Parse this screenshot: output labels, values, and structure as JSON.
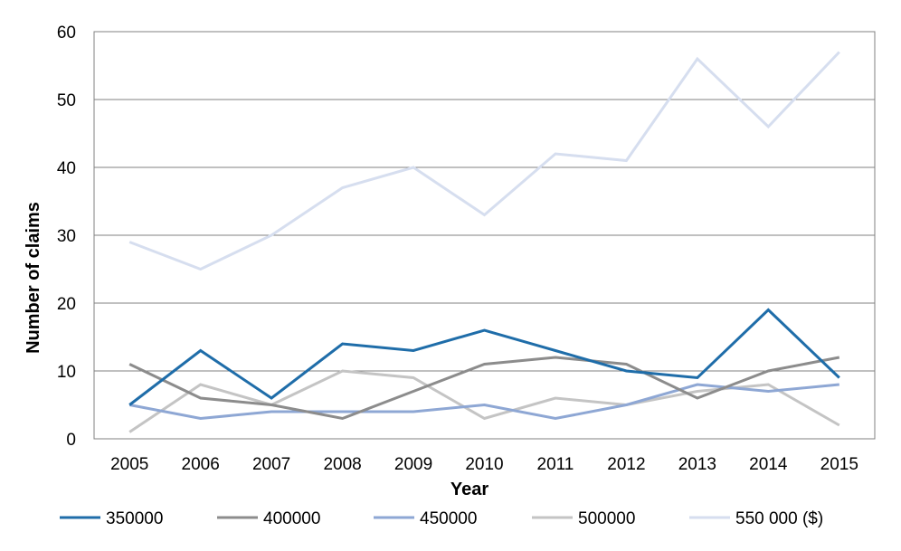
{
  "chart_data": {
    "type": "line",
    "title": "",
    "xlabel": "Year",
    "ylabel": "Number of claims",
    "ylim": [
      0,
      60
    ],
    "yticks": [
      0,
      10,
      20,
      30,
      40,
      50,
      60
    ],
    "grid": true,
    "legend_position": "bottom",
    "x": [
      "2005",
      "2006",
      "2007",
      "2008",
      "2009",
      "2010",
      "2011",
      "2012",
      "2013",
      "2014",
      "2015"
    ],
    "series": [
      {
        "name": "350000",
        "color": "#1F6DA9",
        "values": [
          5,
          13,
          6,
          14,
          13,
          16,
          13,
          10,
          9,
          19,
          9
        ]
      },
      {
        "name": "400000",
        "color": "#8C8C8C",
        "values": [
          11,
          6,
          5,
          3,
          7,
          11,
          12,
          11,
          6,
          10,
          12
        ]
      },
      {
        "name": "450000",
        "color": "#8EA7D4",
        "values": [
          5,
          3,
          4,
          4,
          4,
          5,
          3,
          5,
          8,
          7,
          8
        ]
      },
      {
        "name": "500000",
        "color": "#C4C4C4",
        "values": [
          1,
          8,
          5,
          10,
          9,
          3,
          6,
          5,
          7,
          8,
          2
        ]
      },
      {
        "name": "550 000 ($)",
        "color": "#D6DEEF",
        "values": [
          29,
          25,
          30,
          37,
          40,
          33,
          42,
          41,
          56,
          46,
          57
        ]
      }
    ]
  }
}
